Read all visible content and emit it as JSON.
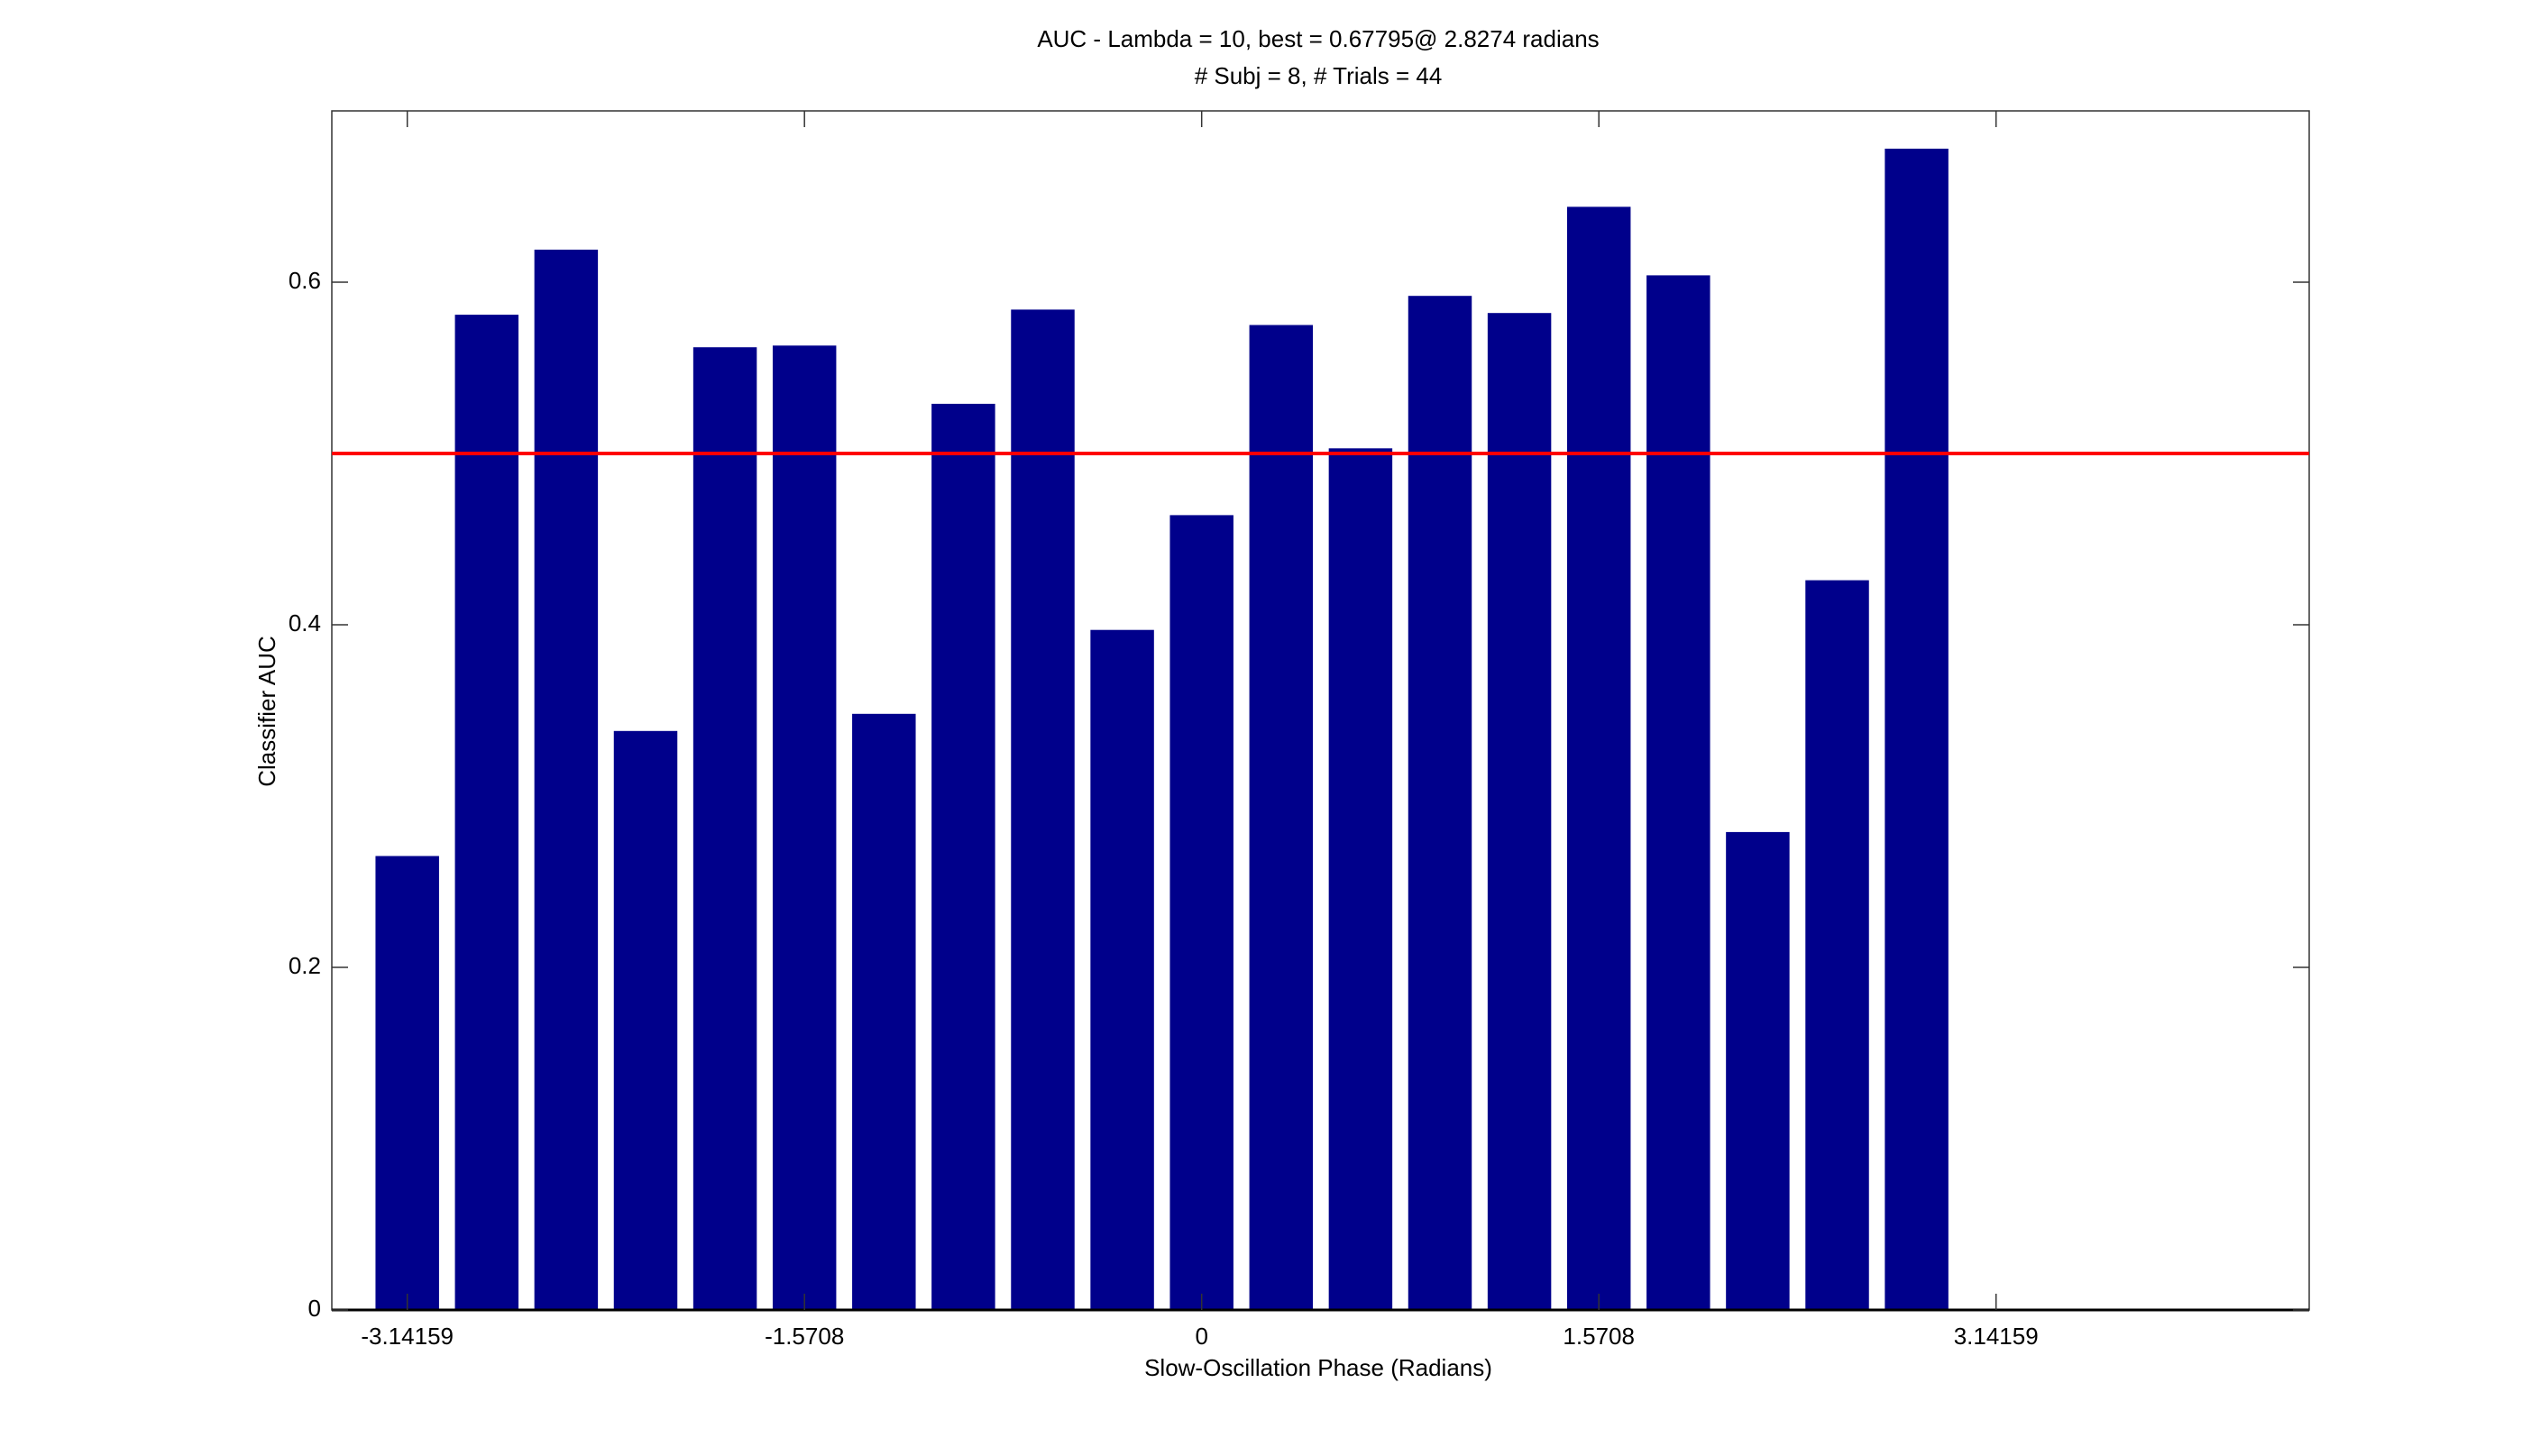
{
  "chart_data": {
    "type": "bar",
    "title": "AUC - Lambda = 10, best = 0.67795@ 2.8274 radians",
    "subtitle": "# Subj = 8, # Trials = 44",
    "xlabel": "Slow-Oscillation Phase (Radians)",
    "ylabel": "Classifier AUC",
    "x": [
      -3.1416,
      -2.8274,
      -2.5133,
      -2.1991,
      -1.885,
      -1.5708,
      -1.2566,
      -0.9425,
      -0.6283,
      -0.3142,
      0,
      0.3142,
      0.6283,
      0.9425,
      1.2566,
      1.5708,
      1.885,
      2.1991,
      2.5133,
      2.8274
    ],
    "values": [
      0.265,
      0.581,
      0.619,
      0.338,
      0.562,
      0.563,
      0.348,
      0.529,
      0.584,
      0.397,
      0.464,
      0.575,
      0.503,
      0.592,
      0.582,
      0.644,
      0.604,
      0.279,
      0.426,
      0.67795
    ],
    "color": "#00008b",
    "xlim": [
      -3.44,
      4.38
    ],
    "xticks": [
      -3.14159,
      -1.5708,
      0,
      1.5708,
      3.14159
    ],
    "ylim": [
      0,
      0.7
    ],
    "yticks": [
      0,
      0.2,
      0.4,
      0.6
    ],
    "reference_line": {
      "value": 0.5,
      "color": "#ff0000"
    },
    "grid": false
  }
}
